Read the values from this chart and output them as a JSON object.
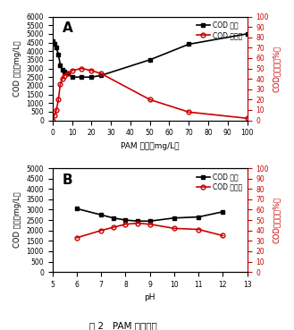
{
  "subplot_A": {
    "title": "A",
    "xlabel": "PAM 用量（mg/L）",
    "ylabel_left": "COD 浓度（mg/L）",
    "ylabel_right": "COD去除率（%）",
    "x_cod": [
      0,
      1,
      2,
      3,
      4,
      5,
      6,
      8,
      10,
      15,
      20,
      25,
      50,
      70,
      100
    ],
    "y_cod": [
      4600,
      4400,
      4200,
      3800,
      3200,
      2900,
      2800,
      2700,
      2500,
      2500,
      2500,
      2600,
      3500,
      4400,
      5000
    ],
    "x_removal": [
      0,
      1,
      2,
      3,
      4,
      5,
      6,
      8,
      10,
      15,
      20,
      25,
      50,
      70,
      100
    ],
    "y_removal": [
      0,
      5,
      10,
      20,
      35,
      40,
      43,
      45,
      48,
      50,
      48,
      45,
      20,
      8,
      2
    ],
    "xlim": [
      0,
      100
    ],
    "ylim_left": [
      0,
      6000
    ],
    "ylim_right": [
      0,
      100
    ],
    "yticks_left": [
      0,
      500,
      1000,
      1500,
      2000,
      2500,
      3000,
      3500,
      4000,
      4500,
      5000,
      5500,
      6000
    ],
    "yticks_right": [
      0,
      10,
      20,
      30,
      40,
      50,
      60,
      70,
      80,
      90,
      100
    ],
    "xticks": [
      0,
      10,
      20,
      30,
      40,
      50,
      60,
      70,
      80,
      90,
      100
    ]
  },
  "subplot_B": {
    "title": "B",
    "xlabel": "pH",
    "ylabel_left": "COD 浓度（mg/L）",
    "ylabel_right": "COD去除率（%）",
    "x_cod": [
      6,
      7,
      7.5,
      8,
      8.5,
      9,
      10,
      11,
      12
    ],
    "y_cod": [
      3050,
      2750,
      2600,
      2500,
      2450,
      2450,
      2600,
      2650,
      2900
    ],
    "x_removal": [
      6,
      7,
      7.5,
      8,
      8.5,
      9,
      10,
      11,
      12
    ],
    "y_removal": [
      33,
      40,
      43,
      46,
      47,
      46,
      42,
      41,
      35
    ],
    "xlim": [
      5,
      13
    ],
    "ylim_left": [
      0,
      5000
    ],
    "ylim_right": [
      0,
      100
    ],
    "yticks_left": [
      0,
      500,
      1000,
      1500,
      2000,
      2500,
      3000,
      3500,
      4000,
      4500,
      5000
    ],
    "yticks_right": [
      0,
      10,
      20,
      30,
      40,
      50,
      60,
      70,
      80,
      90,
      100
    ],
    "xticks": [
      5,
      6,
      7,
      8,
      9,
      10,
      11,
      12,
      13
    ]
  },
  "legend_cod_label": "COD 浓度",
  "legend_removal_label": "COD 去除率",
  "fig_title": "图 2   PAM 絮凝工艺",
  "color_cod": "#000000",
  "color_removal": "#cc0000",
  "background": "#ffffff"
}
